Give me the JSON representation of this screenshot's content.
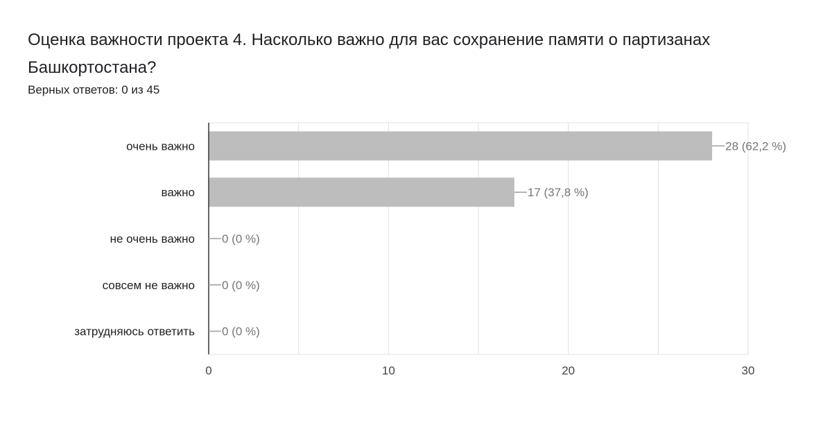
{
  "header": {
    "title": "Оценка важности проекта  4. Насколько важно для вас сохранение памяти о партизанах Башкортостана?",
    "subtitle": "Верных ответов: 0 из 45"
  },
  "colors": {
    "bar": "#bdbdbd",
    "axis": "#333333",
    "grid": "#e0e0e0",
    "leader": "#9e9e9e"
  },
  "chart_data": {
    "type": "bar",
    "orientation": "horizontal",
    "categories": [
      "очень важно",
      "важно",
      "не очень важно",
      "совсем не важно",
      "затрудняюсь ответить"
    ],
    "values": [
      28,
      17,
      0,
      0,
      0
    ],
    "value_labels": [
      "28 (62,2 %)",
      "17 (37,8 %)",
      "0 (0 %)",
      "0 (0 %)",
      "0 (0 %)"
    ],
    "xlim": [
      0,
      30
    ],
    "xticks": [
      0,
      10,
      20,
      30
    ],
    "grid": true
  }
}
